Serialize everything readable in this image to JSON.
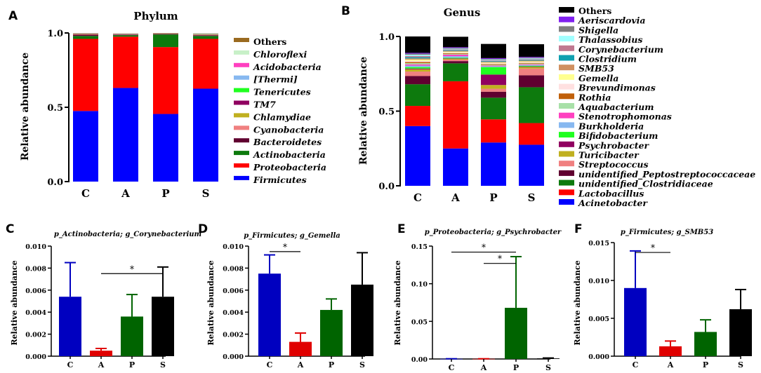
{
  "chart_data": [
    {
      "id": "A",
      "panel_label": "A",
      "type": "stacked-bar",
      "title": "Phylum",
      "ylabel": "Relative abundance",
      "ylim": [
        0,
        1.0
      ],
      "yticks": [
        "0.0",
        "0.5",
        "1.0"
      ],
      "categories": [
        "C",
        "A",
        "P",
        "S"
      ],
      "series": [
        {
          "name": "Firmicutes",
          "color": "#0000ff",
          "values": [
            0.475,
            0.63,
            0.455,
            0.625
          ]
        },
        {
          "name": "Proteobacteria",
          "color": "#ff0000",
          "values": [
            0.485,
            0.345,
            0.45,
            0.335
          ]
        },
        {
          "name": "Actinobacteria",
          "color": "#0d7a0d",
          "values": [
            0.02,
            0.01,
            0.085,
            0.02
          ]
        },
        {
          "name": "Bacteroidetes",
          "color": "#600030",
          "values": [
            0.008,
            0.004,
            0.004,
            0.005
          ]
        },
        {
          "name": "Cyanobacteria",
          "color": "#f08080",
          "values": [
            0.003,
            0.002,
            0.002,
            0.003
          ]
        },
        {
          "name": "Chlamydiae",
          "color": "#c0b020",
          "values": [
            0.002,
            0.001,
            0.001,
            0.002
          ]
        },
        {
          "name": "TM7",
          "color": "#900060",
          "values": [
            0.002,
            0.001,
            0.001,
            0.002
          ]
        },
        {
          "name": "Tenericutes",
          "color": "#20ff20",
          "values": [
            0.001,
            0.001,
            0.001,
            0.002
          ]
        },
        {
          "name": "[Thermi]",
          "color": "#87b8f0",
          "values": [
            0.001,
            0.001,
            0.0,
            0.001
          ]
        },
        {
          "name": "Acidobacteria",
          "color": "#ff40c0",
          "values": [
            0.001,
            0.001,
            0.0,
            0.001
          ]
        },
        {
          "name": "Chloroflexi",
          "color": "#c8f0c8",
          "values": [
            0.001,
            0.001,
            0.0,
            0.001
          ]
        },
        {
          "name": "Others",
          "color": "#9a6a20",
          "values": [
            0.001,
            0.001,
            0.001,
            0.001
          ]
        }
      ],
      "legend_order": [
        "Others",
        "Chloroflexi",
        "Acidobacteria",
        "[Thermi]",
        "Tenericutes",
        "TM7",
        "Chlamydiae",
        "Cyanobacteria",
        "Bacteroidetes",
        "Actinobacteria",
        "Proteobacteria",
        "Firmicutes"
      ],
      "legend_position": "right"
    },
    {
      "id": "B",
      "panel_label": "B",
      "type": "stacked-bar",
      "title": "Genus",
      "ylabel": "Relative abundance",
      "ylim": [
        0,
        1.0
      ],
      "yticks": [
        "0.0",
        "0.5",
        "1.0"
      ],
      "categories": [
        "C",
        "A",
        "P",
        "S"
      ],
      "series": [
        {
          "name": "Acinetobacter",
          "color": "#0000ff",
          "values": [
            0.4,
            0.25,
            0.29,
            0.275
          ]
        },
        {
          "name": "Lactobacillus",
          "color": "#ff0000",
          "values": [
            0.135,
            0.45,
            0.155,
            0.145
          ]
        },
        {
          "name": "unidentified_Clostridiaceae",
          "color": "#0d7a0d",
          "values": [
            0.145,
            0.12,
            0.145,
            0.24
          ]
        },
        {
          "name": "unidentified_Peptostreptococcaceae",
          "color": "#600030",
          "values": [
            0.055,
            0.015,
            0.04,
            0.08
          ]
        },
        {
          "name": "Streptococcus",
          "color": "#f08080",
          "values": [
            0.03,
            0.01,
            0.02,
            0.045
          ]
        },
        {
          "name": "Turicibacter",
          "color": "#c0b020",
          "values": [
            0.015,
            0.005,
            0.025,
            0.01
          ]
        },
        {
          "name": "Psychrobacter",
          "color": "#900060",
          "values": [
            0.005,
            0.003,
            0.07,
            0.003
          ]
        },
        {
          "name": "Bifidobacterium",
          "color": "#20ff20",
          "values": [
            0.01,
            0.005,
            0.05,
            0.005
          ]
        },
        {
          "name": "Burkholderia",
          "color": "#87b8f0",
          "values": [
            0.01,
            0.01,
            0.005,
            0.005
          ]
        },
        {
          "name": "Stenotrophomonas",
          "color": "#ff40c0",
          "values": [
            0.008,
            0.01,
            0.005,
            0.005
          ]
        },
        {
          "name": "Aquabacterium",
          "color": "#a8e0a8",
          "values": [
            0.008,
            0.005,
            0.005,
            0.005
          ]
        },
        {
          "name": "Rothia",
          "color": "#c0600a",
          "values": [
            0.008,
            0.005,
            0.005,
            0.005
          ]
        },
        {
          "name": "Brevundimonas",
          "color": "#ffe0e0",
          "values": [
            0.008,
            0.005,
            0.005,
            0.005
          ]
        },
        {
          "name": "Gemella",
          "color": "#ffff90",
          "values": [
            0.008,
            0.005,
            0.005,
            0.005
          ]
        },
        {
          "name": "SMB53",
          "color": "#d09060",
          "values": [
            0.008,
            0.005,
            0.005,
            0.005
          ]
        },
        {
          "name": "Clostridium",
          "color": "#10a0b0",
          "values": [
            0.008,
            0.005,
            0.005,
            0.005
          ]
        },
        {
          "name": "Corynebacterium",
          "color": "#c07890",
          "values": [
            0.008,
            0.005,
            0.005,
            0.005
          ]
        },
        {
          "name": "Thalassobius",
          "color": "#a0ffff",
          "values": [
            0.008,
            0.005,
            0.005,
            0.005
          ]
        },
        {
          "name": "Shigella",
          "color": "#808080",
          "values": [
            0.008,
            0.005,
            0.005,
            0.005
          ]
        },
        {
          "name": "Aeriscardovia",
          "color": "#8020f0",
          "values": [
            0.005,
            0.005,
            0.005,
            0.005
          ]
        },
        {
          "name": "Others",
          "color": "#000000",
          "values": [
            0.11,
            0.07,
            0.095,
            0.085
          ]
        }
      ],
      "legend_order": [
        "Others",
        "Aeriscardovia",
        "Shigella",
        "Thalassobius",
        "Corynebacterium",
        "Clostridium",
        "SMB53",
        "Gemella",
        "Brevundimonas",
        "Rothia",
        "Aquabacterium",
        "Stenotrophomonas",
        "Burkholderia",
        "Bifidobacterium",
        "Psychrobacter",
        "Turicibacter",
        "Streptococcus",
        "unidentified_Peptostreptococcaceae",
        "unidentified_Clostridiaceae",
        "Lactobacillus",
        "Acinetobacter"
      ],
      "legend_position": "right"
    },
    {
      "id": "C",
      "panel_label": "C",
      "type": "bar",
      "title": "p_Actinobacteria; g_Corynebacterium",
      "ylabel": "Relative abundance",
      "ylim": [
        0,
        0.01
      ],
      "yticks": [
        "0.000",
        "0.002",
        "0.004",
        "0.006",
        "0.008",
        "0.010"
      ],
      "categories": [
        "C",
        "A",
        "P",
        "S"
      ],
      "colors": [
        "#0000c0",
        "#e00000",
        "#006400",
        "#000000"
      ],
      "values": [
        0.0054,
        0.0005,
        0.0036,
        0.0054
      ],
      "errors": [
        0.0031,
        0.0002,
        0.002,
        0.0027
      ],
      "significance": [
        {
          "from": 1,
          "to": 3,
          "y": 0.0075,
          "label": "*"
        }
      ]
    },
    {
      "id": "D",
      "panel_label": "D",
      "type": "bar",
      "title": "p_Firmicutes; g_Gemella",
      "ylabel": "Relative abundance",
      "ylim": [
        0,
        0.01
      ],
      "yticks": [
        "0.000",
        "0.002",
        "0.004",
        "0.006",
        "0.008",
        "0.010"
      ],
      "categories": [
        "C",
        "A",
        "P",
        "S"
      ],
      "colors": [
        "#0000c0",
        "#e00000",
        "#006400",
        "#000000"
      ],
      "values": [
        0.0075,
        0.0013,
        0.0042,
        0.0065
      ],
      "errors": [
        0.0017,
        0.0008,
        0.001,
        0.0029
      ],
      "significance": [
        {
          "from": 0,
          "to": 1,
          "y": 0.0095,
          "label": "*"
        }
      ]
    },
    {
      "id": "E",
      "panel_label": "E",
      "type": "bar",
      "title": "p_Proteobacteria; g_Psychrobacter",
      "ylabel": "Relative abundance",
      "ylim": [
        0,
        0.15
      ],
      "yticks": [
        "0.00",
        "0.05",
        "0.10",
        "0.15"
      ],
      "categories": [
        "C",
        "A",
        "P",
        "S"
      ],
      "colors": [
        "#0000c0",
        "#e00000",
        "#006400",
        "#000000"
      ],
      "values": [
        0.0002,
        0.0002,
        0.068,
        0.0008
      ],
      "errors": [
        0.0001,
        0.0001,
        0.068,
        0.0005
      ],
      "significance": [
        {
          "from": 0,
          "to": 2,
          "y": 0.142,
          "label": "*"
        },
        {
          "from": 1,
          "to": 2,
          "y": 0.127,
          "label": "*"
        }
      ]
    },
    {
      "id": "F",
      "panel_label": "F",
      "type": "bar",
      "title": "p_Firmicutes; g_SMB53",
      "ylabel": "Relative abundance",
      "ylim": [
        0,
        0.015
      ],
      "yticks": [
        "0.000",
        "0.005",
        "0.010",
        "0.015"
      ],
      "categories": [
        "C",
        "A",
        "P",
        "S"
      ],
      "colors": [
        "#0000c0",
        "#e00000",
        "#006400",
        "#000000"
      ],
      "values": [
        0.009,
        0.0013,
        0.0032,
        0.0062
      ],
      "errors": [
        0.0049,
        0.0007,
        0.0016,
        0.0026
      ],
      "significance": [
        {
          "from": 0,
          "to": 1,
          "y": 0.0137,
          "label": "*"
        }
      ]
    }
  ]
}
